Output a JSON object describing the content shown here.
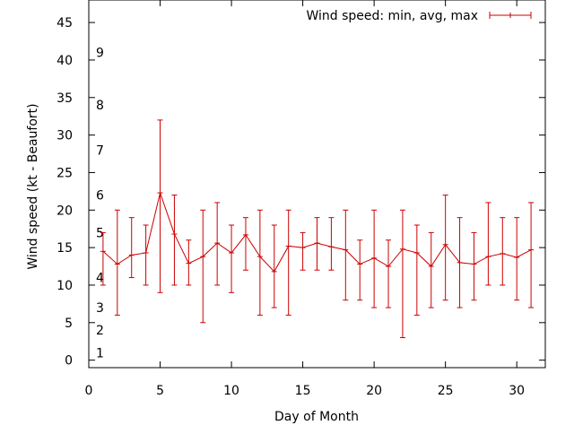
{
  "chart_data": {
    "type": "line",
    "title": "",
    "xlabel": "Day of Month",
    "ylabel": "Wind speed (kt - Beaufort)",
    "xlim": [
      0,
      32
    ],
    "ylim": [
      -1,
      48
    ],
    "xticks": [
      0,
      5,
      10,
      15,
      20,
      25,
      30
    ],
    "yticks": [
      0,
      5,
      10,
      15,
      20,
      25,
      30,
      35,
      40,
      45
    ],
    "grid": false,
    "legend_position": "top-right",
    "series": [
      {
        "name": "Wind speed: min, avg, max",
        "color": "#cc0000",
        "x": [
          1,
          2,
          3,
          4,
          5,
          6,
          7,
          8,
          9,
          10,
          11,
          12,
          13,
          14,
          15,
          16,
          17,
          18,
          19,
          20,
          21,
          22,
          23,
          24,
          25,
          26,
          27,
          28,
          29,
          30,
          31
        ],
        "y": [
          14.5,
          12.8,
          14.0,
          14.3,
          22.3,
          16.8,
          12.9,
          13.8,
          15.6,
          14.3,
          16.7,
          13.8,
          11.8,
          15.2,
          15.0,
          15.6,
          15.1,
          14.7,
          12.8,
          13.6,
          12.5,
          14.8,
          14.3,
          12.5,
          15.4,
          13.0,
          12.8,
          13.8,
          14.2,
          13.7,
          14.7
        ],
        "min": [
          10,
          6,
          11,
          10,
          9,
          10,
          10,
          5,
          10,
          9,
          12,
          6,
          7,
          6,
          12,
          12,
          12,
          8,
          8,
          7,
          7,
          3,
          6,
          7,
          8,
          7,
          8,
          10,
          10,
          8,
          7
        ],
        "max": [
          17,
          20,
          19,
          18,
          32,
          22,
          16,
          20,
          21,
          18,
          19,
          20,
          18,
          20,
          17,
          19,
          19,
          20,
          16,
          20,
          16,
          20,
          18,
          17,
          22,
          19,
          17,
          21,
          19,
          19,
          21
        ]
      }
    ],
    "annotations": [
      {
        "text": "1",
        "y": 1
      },
      {
        "text": "2",
        "y": 4
      },
      {
        "text": "3",
        "y": 7
      },
      {
        "text": "4",
        "y": 11
      },
      {
        "text": "5",
        "y": 17
      },
      {
        "text": "6",
        "y": 22
      },
      {
        "text": "7",
        "y": 28
      },
      {
        "text": "8",
        "y": 34
      },
      {
        "text": "9",
        "y": 41
      }
    ]
  }
}
